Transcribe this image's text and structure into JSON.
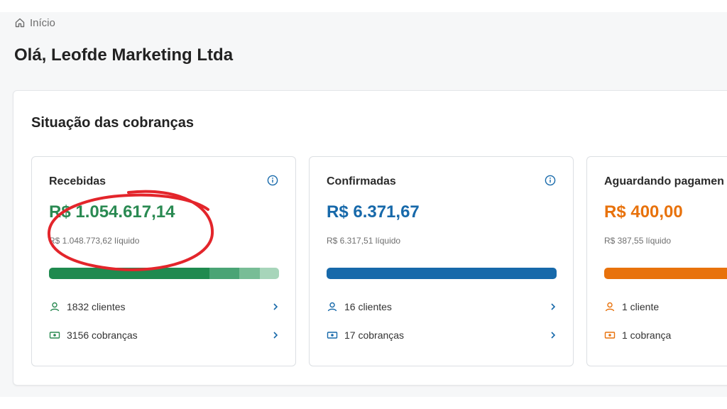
{
  "breadcrumb": {
    "icon": "home-icon",
    "label": "Início"
  },
  "page_title": "Olá, Leofde Marketing Ltda",
  "panel_title": "Situação das cobranças",
  "colors": {
    "green": "#2a8a52",
    "blue": "#1769aa",
    "orange": "#e8720c",
    "annotation": "#e3252b"
  },
  "cards": [
    {
      "title": "Recebidas",
      "amount": "R$ 1.054.617,14",
      "net": "R$ 1.048.773,62 líquido",
      "clients": "1832 clientes",
      "charges": "3156 cobranças"
    },
    {
      "title": "Confirmadas",
      "amount": "R$ 6.371,67",
      "net": "R$ 6.317,51 líquido",
      "clients": "16 clientes",
      "charges": "17 cobranças"
    },
    {
      "title": "Aguardando pagamen",
      "amount": "R$ 400,00",
      "net": "R$ 387,55 líquido",
      "clients": "1 cliente",
      "charges": "1 cobrança"
    }
  ]
}
